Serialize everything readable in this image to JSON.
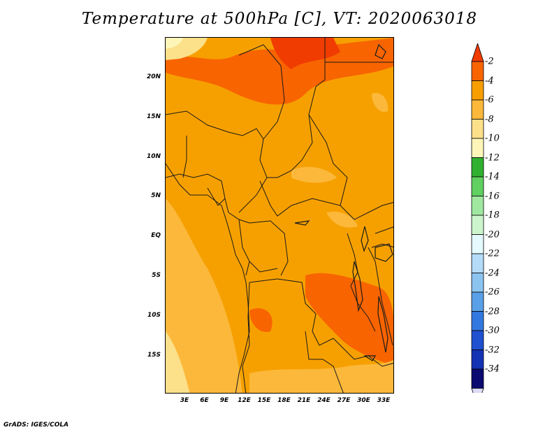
{
  "title": "Temperature at 500hPa [C], VT: 2020063018",
  "lat_labels": [
    "20N",
    "15N",
    "10N",
    "5N",
    "EQ",
    "5S",
    "10S",
    "15S"
  ],
  "lon_labels": [
    "3E",
    "6E",
    "9E",
    "12E",
    "15E",
    "18E",
    "21E",
    "24E",
    "27E",
    "30E",
    "33E"
  ],
  "colorbar": {
    "labels": [
      "-2",
      "-4",
      "-6",
      "-8",
      "-10",
      "-12",
      "-14",
      "-16",
      "-18",
      "-20",
      "-22",
      "-24",
      "-26",
      "-28",
      "-30",
      "-32",
      "-34"
    ],
    "colors": [
      "#f03c00",
      "#f86400",
      "#f89e00",
      "#fcb83a",
      "#fce08a",
      "#fdf6b8",
      "#30b030",
      "#60d060",
      "#a0e8a0",
      "#cdf5cd",
      "#e4faff",
      "#b4dcf8",
      "#8cc4f0",
      "#5aa0e8",
      "#3278e0",
      "#1e50d0",
      "#1432b4",
      "#0a0a70",
      "#dcdcf8"
    ]
  },
  "credit": "GrADS: IGES/COLA"
}
